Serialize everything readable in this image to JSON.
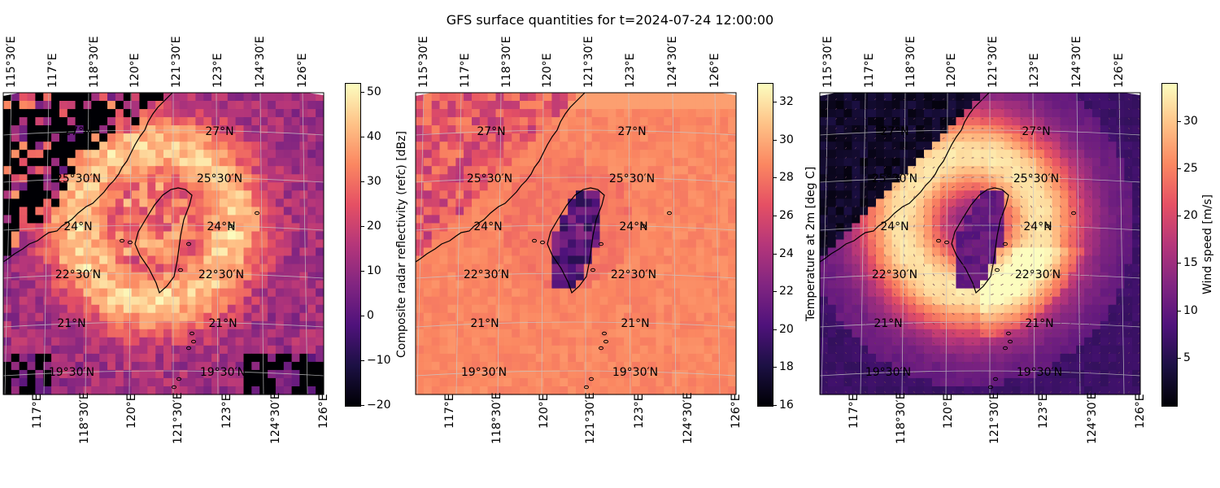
{
  "figure": {
    "title": "GFS surface quantities for t=2024-07-24 12:00:00"
  },
  "lon_ticks_top": [
    "115°30′E",
    "117°E",
    "118°30′E",
    "120°E",
    "121°30′E",
    "123°E",
    "124°30′E",
    "126°E"
  ],
  "lon_ticks_bottom": [
    "117°E",
    "118°30′E",
    "120°E",
    "121°30′E",
    "123°E",
    "124°30′E",
    "126°E"
  ],
  "lat_labels": [
    "27°N",
    "25°30′N",
    "24°N",
    "22°30′N",
    "21°N",
    "19°30′N"
  ],
  "colormap": "magma",
  "chart_data": [
    {
      "type": "heatmap",
      "title": "",
      "quantity": "Composite radar reflectivity (refc) [dBz]",
      "colorbar_label": "Composite radar reflectivity (refc) [dBz]",
      "colorbar_ticks": [
        "50",
        "40",
        "30",
        "20",
        "10",
        "0",
        "−10",
        "−20"
      ],
      "vmin": -20,
      "vmax": 52,
      "extent_lon": [
        115.5,
        126.5
      ],
      "extent_lat": [
        18.5,
        28.5
      ],
      "description_values": {
        "eye_center": [
          121.0,
          23.2
        ],
        "rainband_max": 50
      }
    },
    {
      "type": "heatmap",
      "title": "",
      "quantity": "Temperature at 2m [deg C]",
      "colorbar_label": "Temperature at 2m [deg C]",
      "colorbar_ticks": [
        "32",
        "30",
        "28",
        "26",
        "24",
        "22",
        "20",
        "18",
        "16"
      ],
      "vmin": 16,
      "vmax": 33,
      "extent_lon": [
        115.5,
        126.5
      ],
      "extent_lat": [
        18.5,
        28.5
      ]
    },
    {
      "type": "heatmap",
      "title": "",
      "quantity": "Wind speed [m/s]",
      "colorbar_label": "Wind speed [m/s]",
      "colorbar_ticks": [
        "30",
        "25",
        "20",
        "15",
        "10",
        "5"
      ],
      "vmin": 0,
      "vmax": 34,
      "extent_lon": [
        115.5,
        126.5
      ],
      "extent_lat": [
        18.5,
        28.5
      ],
      "quiver": true
    }
  ]
}
